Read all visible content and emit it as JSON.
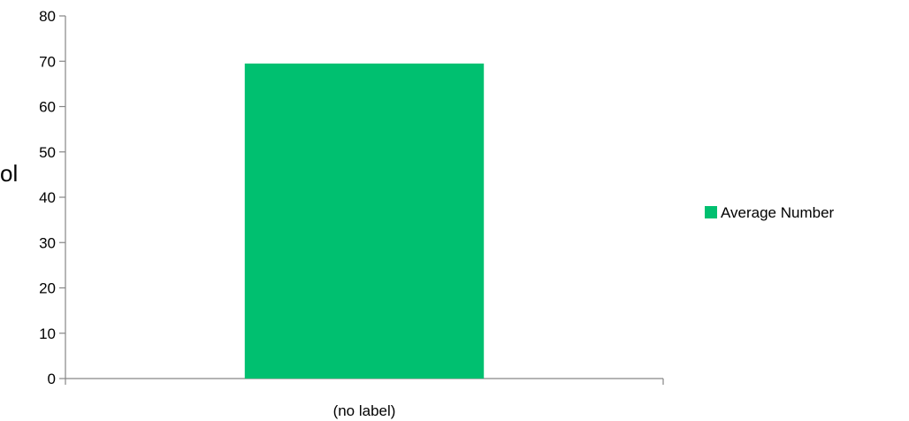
{
  "chart_data": {
    "type": "bar",
    "categories": [
      "(no label)"
    ],
    "series": [
      {
        "name": "Average Number",
        "values": [
          69.5
        ],
        "color": "#00C070"
      }
    ],
    "ylim": [
      0,
      80
    ],
    "yticks": [
      0,
      10,
      20,
      30,
      40,
      50,
      60,
      70,
      80
    ],
    "ylabel": "ol",
    "legend": "right",
    "grid": false
  }
}
